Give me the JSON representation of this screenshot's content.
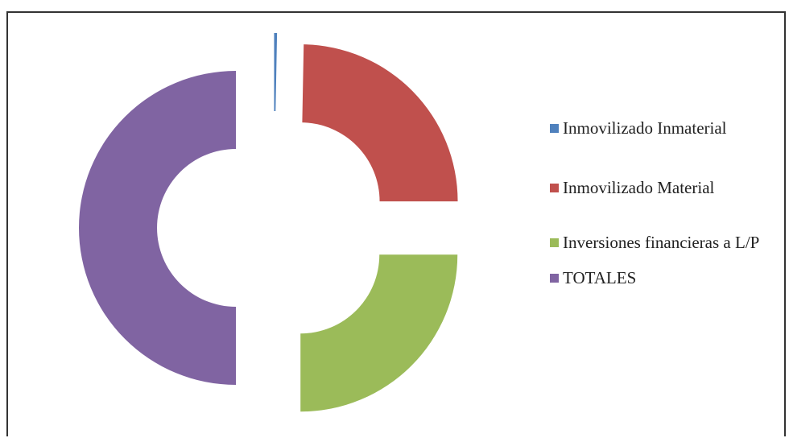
{
  "chart_data": {
    "type": "donut",
    "categories": [
      "Inmovilizado Inmaterial",
      "Inmovilizado Material",
      "Inversiones financieras a L/P",
      "TOTALES"
    ],
    "values": [
      0.3,
      24.7,
      25,
      50
    ],
    "colors": [
      "#4f81bd",
      "#c0504d",
      "#9bbb59",
      "#8064a2"
    ],
    "exploded": true,
    "legend": "right"
  }
}
